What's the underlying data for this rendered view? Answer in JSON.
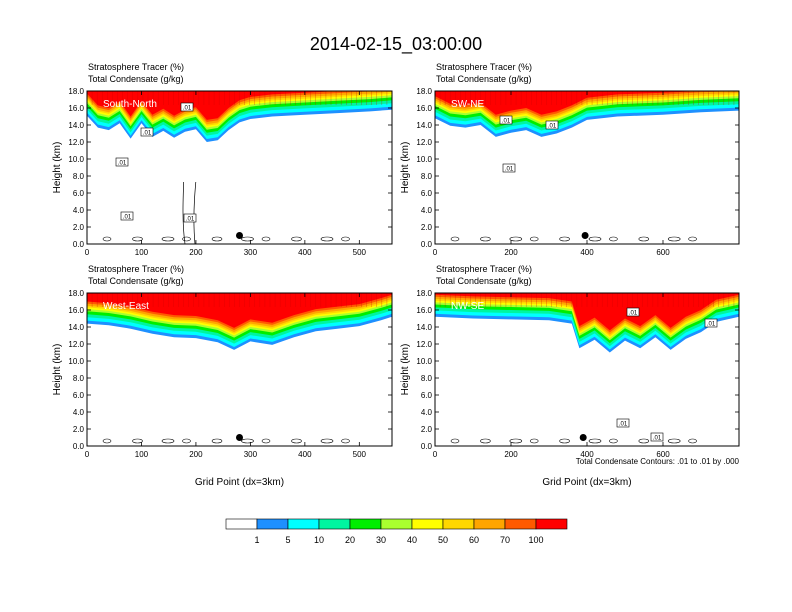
{
  "figure": {
    "title": "2014-02-15_03:00:00",
    "footer_note": "Total Condensate Contours: .01 to .01 by .000"
  },
  "colors": {
    "levels": [
      "#ffffff",
      "#1e90ff",
      "#00ffff",
      "#00f5a0",
      "#00ee00",
      "#aaff2f",
      "#ffff00",
      "#ffd700",
      "#ffa500",
      "#ff5a00",
      "#ff0000"
    ],
    "contour": "#000000",
    "marker": "#000000"
  },
  "chart_data": [
    {
      "type": "heatmap",
      "panel_label": "South-North",
      "header_lines": [
        "Stratosphere Tracer   (%)",
        "Total Condensate   (g/kg)"
      ],
      "ylabel": "Height (km)",
      "xlabel": "",
      "xlim": [
        0,
        560
      ],
      "ylim": [
        0,
        18
      ],
      "x_ticks": [
        "0",
        "100",
        "200",
        "300",
        "400",
        "500"
      ],
      "y_ticks": [
        "0.0",
        "2.0",
        "4.0",
        "6.0",
        "8.0",
        "10.0",
        "12.0",
        "14.0",
        "16.0",
        "18.0"
      ],
      "tracer_base_km": [
        [
          0,
          15.1
        ],
        [
          20,
          13.7
        ],
        [
          40,
          13.4
        ],
        [
          60,
          14.2
        ],
        [
          80,
          12.4
        ],
        [
          100,
          14.2
        ],
        [
          120,
          12.6
        ],
        [
          140,
          13.3
        ],
        [
          160,
          12.5
        ],
        [
          180,
          13.2
        ],
        [
          200,
          13.5
        ],
        [
          220,
          12.0
        ],
        [
          240,
          12.2
        ],
        [
          260,
          13.4
        ],
        [
          280,
          14.3
        ],
        [
          300,
          14.7
        ],
        [
          340,
          15.0
        ],
        [
          400,
          15.2
        ],
        [
          460,
          15.4
        ],
        [
          520,
          15.6
        ],
        [
          560,
          15.8
        ]
      ],
      "contour_labels": [
        ".01",
        ".01",
        ".01",
        ".01",
        ".01"
      ],
      "marker_x": 280,
      "marker_y_km": 1.0
    },
    {
      "type": "heatmap",
      "panel_label": "SW-NE",
      "header_lines": [
        "Stratosphere Tracer   (%)",
        "Total Condensate   (g/kg)"
      ],
      "ylabel": "Height (km)",
      "xlabel": "",
      "xlim": [
        0,
        800
      ],
      "ylim": [
        0,
        18
      ],
      "x_ticks": [
        "0",
        "200",
        "400",
        "600"
      ],
      "y_ticks": [
        "0.0",
        "2.0",
        "4.0",
        "6.0",
        "8.0",
        "10.0",
        "12.0",
        "14.0",
        "16.0",
        "18.0"
      ],
      "tracer_base_km": [
        [
          0,
          14.8
        ],
        [
          40,
          13.9
        ],
        [
          80,
          13.7
        ],
        [
          120,
          14.0
        ],
        [
          160,
          12.6
        ],
        [
          200,
          13.1
        ],
        [
          240,
          13.4
        ],
        [
          280,
          12.6
        ],
        [
          320,
          13.0
        ],
        [
          360,
          13.7
        ],
        [
          400,
          14.6
        ],
        [
          480,
          15.0
        ],
        [
          600,
          15.2
        ],
        [
          700,
          15.5
        ],
        [
          800,
          15.7
        ]
      ],
      "contour_labels": [
        ".01",
        ".01",
        ".01"
      ],
      "marker_x": 395,
      "marker_y_km": 1.0
    },
    {
      "type": "heatmap",
      "panel_label": "West-East",
      "header_lines": [
        "Stratosphere Tracer   (%)",
        "Total Condensate   (g/kg)"
      ],
      "ylabel": "Height (km)",
      "xlabel": "Grid Point (dx=3km)",
      "xlim": [
        0,
        560
      ],
      "ylim": [
        0,
        18
      ],
      "x_ticks": [
        "0",
        "100",
        "200",
        "300",
        "400",
        "500"
      ],
      "y_ticks": [
        "0.0",
        "2.0",
        "4.0",
        "6.0",
        "8.0",
        "10.0",
        "12.0",
        "14.0",
        "16.0",
        "18.0"
      ],
      "tracer_base_km": [
        [
          0,
          14.4
        ],
        [
          40,
          14.2
        ],
        [
          80,
          13.8
        ],
        [
          120,
          13.2
        ],
        [
          160,
          12.8
        ],
        [
          200,
          12.7
        ],
        [
          240,
          12.2
        ],
        [
          270,
          11.3
        ],
        [
          300,
          12.3
        ],
        [
          340,
          11.9
        ],
        [
          380,
          12.8
        ],
        [
          420,
          13.5
        ],
        [
          460,
          13.8
        ],
        [
          500,
          14.1
        ],
        [
          540,
          14.8
        ],
        [
          560,
          15.2
        ]
      ],
      "contour_labels": [],
      "marker_x": 280,
      "marker_y_km": 1.0
    },
    {
      "type": "heatmap",
      "panel_label": "NW-SE",
      "header_lines": [
        "Stratosphere Tracer   (%)",
        "Total Condensate   (g/kg)"
      ],
      "ylabel": "Height (km)",
      "xlabel": "Grid Point (dx=3km)",
      "xlim": [
        0,
        800
      ],
      "ylim": [
        0,
        18
      ],
      "x_ticks": [
        "0",
        "200",
        "400",
        "600"
      ],
      "y_ticks": [
        "0.0",
        "2.0",
        "4.0",
        "6.0",
        "8.0",
        "10.0",
        "12.0",
        "14.0",
        "16.0",
        "18.0"
      ],
      "tracer_base_km": [
        [
          0,
          15.2
        ],
        [
          100,
          15.0
        ],
        [
          200,
          14.9
        ],
        [
          300,
          14.8
        ],
        [
          360,
          14.4
        ],
        [
          380,
          11.5
        ],
        [
          420,
          12.5
        ],
        [
          460,
          11.0
        ],
        [
          500,
          12.4
        ],
        [
          540,
          11.5
        ],
        [
          580,
          12.8
        ],
        [
          620,
          11.3
        ],
        [
          660,
          12.6
        ],
        [
          700,
          13.4
        ],
        [
          740,
          14.6
        ],
        [
          800,
          15.2
        ]
      ],
      "contour_labels": [
        ".01",
        ".01",
        ".01",
        ".01"
      ],
      "marker_x": 390,
      "marker_y_km": 1.0
    }
  ],
  "colorbar": {
    "labels": [
      "1",
      "5",
      "10",
      "20",
      "30",
      "40",
      "50",
      "60",
      "70",
      "100"
    ]
  }
}
